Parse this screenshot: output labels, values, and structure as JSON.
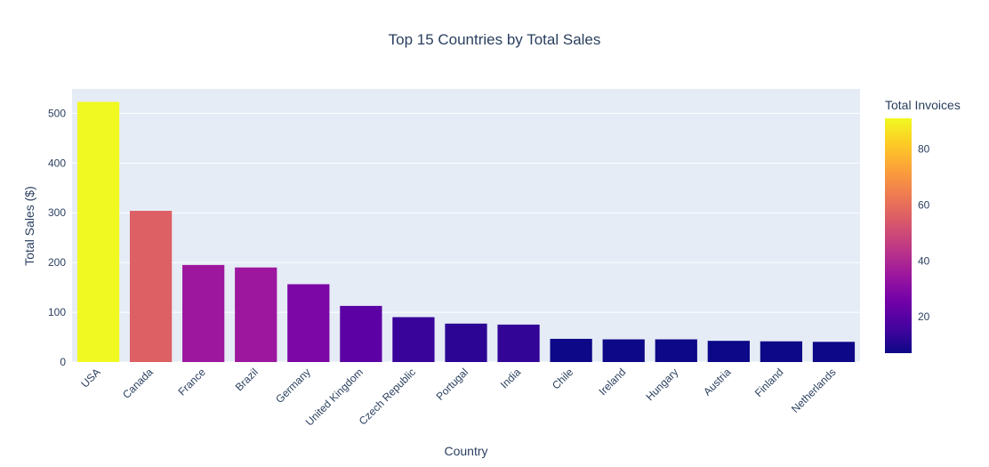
{
  "chart_data": {
    "type": "bar",
    "title": "Top 15 Countries by Total Sales",
    "xlabel": "Country",
    "ylabel": "Total Sales ($)",
    "categories": [
      "USA",
      "Canada",
      "France",
      "Brazil",
      "Germany",
      "United Kingdom",
      "Czech Republic",
      "Portugal",
      "India",
      "Chile",
      "Ireland",
      "Hungary",
      "Austria",
      "Finland",
      "Netherlands"
    ],
    "values": [
      523.06,
      303.96,
      195.1,
      190.1,
      156.48,
      112.86,
      90.24,
      77.24,
      75.26,
      46.62,
      45.62,
      45.62,
      42.62,
      41.62,
      40.62
    ],
    "ylim": [
      0,
      549
    ],
    "yticks": [
      0,
      100,
      200,
      300,
      400,
      500
    ],
    "grid": true,
    "colorbar": {
      "title": "Total Invoices",
      "values": [
        91,
        56,
        35,
        35,
        28,
        21,
        14,
        12,
        13,
        7,
        7,
        7,
        7,
        7,
        7
      ],
      "range": [
        7,
        91
      ],
      "ticks": [
        20,
        40,
        60,
        80
      ],
      "colorscale": [
        "#0d0887",
        "#46039f",
        "#7201a8",
        "#9c179e",
        "#bd3786",
        "#d8576b",
        "#ed7953",
        "#fb9f3a",
        "#fdca26",
        "#f0f921"
      ]
    },
    "colors": {
      "plot_bg": "#e5ecf6",
      "grid": "#ffffff",
      "text": "#2a3f5f"
    }
  }
}
